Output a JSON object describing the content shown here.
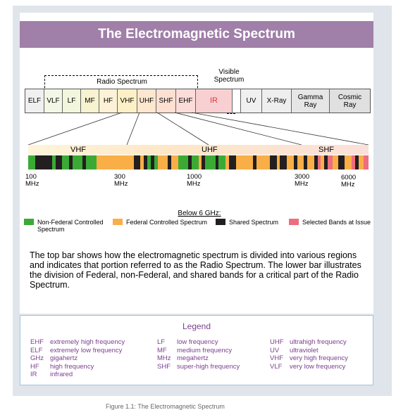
{
  "title": "The Electromagnetic Spectrum",
  "radio_spectrum_label": "Radio Spectrum",
  "visible_spectrum_label": "Visible\nSpectrum",
  "bands": [
    {
      "label": "ELF",
      "color": "#f0f0f0"
    },
    {
      "label": "VLF",
      "color": "#f3f7e5"
    },
    {
      "label": "LF",
      "color": "#f2f6dc"
    },
    {
      "label": "MF",
      "color": "#f7f2cf"
    },
    {
      "label": "HF",
      "color": "#fdf2d7"
    },
    {
      "label": "VHF",
      "color": "#fef0c6"
    },
    {
      "label": "UHF",
      "color": "#fde7cf"
    },
    {
      "label": "SHF",
      "color": "#fde0d2"
    },
    {
      "label": "EHF",
      "color": "#fbdcd8"
    },
    {
      "label": "IR",
      "color": "#f9d0d2",
      "text_color": "#e0353b"
    },
    {
      "label": "",
      "color": "#ffffff"
    },
    {
      "label": "UV",
      "color": "#f0f0f0"
    },
    {
      "label": "X-Ray",
      "color": "#eeeeee"
    },
    {
      "label": "Gamma\nRay",
      "color": "#e6e6e6"
    },
    {
      "label": "Cosmic\nRay",
      "color": "#e0e0e0"
    }
  ],
  "sub_bands": [
    "VHF",
    "UHF",
    "SHF"
  ],
  "ticks": [
    {
      "label": "100\nMHz"
    },
    {
      "label": "300\nMHz"
    },
    {
      "label": "1000\nMHz"
    },
    {
      "label": "3000\nMHz"
    },
    {
      "label": "6000\nMHz"
    }
  ],
  "below_label": "Below 6 GHz:",
  "allocation_legend": [
    {
      "label": "Non-Federal Controlled\nSpectrum",
      "color": "#3aaa35"
    },
    {
      "label": "Federal Controlled Spectrum",
      "color": "#f9ae48"
    },
    {
      "label": "Shared Spectrum",
      "color": "#231f20"
    },
    {
      "label": "Selected Bands at Issue",
      "color": "#ee6d7e"
    }
  ],
  "allocation_segments": [
    {
      "start": 0.0,
      "end": 0.02,
      "type": "green"
    },
    {
      "start": 0.02,
      "end": 0.07,
      "type": "black"
    },
    {
      "start": 0.07,
      "end": 0.08,
      "type": "green"
    },
    {
      "start": 0.08,
      "end": 0.1,
      "type": "black"
    },
    {
      "start": 0.12,
      "end": 0.13,
      "type": "black"
    },
    {
      "start": 0.13,
      "end": 0.16,
      "type": "green"
    },
    {
      "start": 0.16,
      "end": 0.17,
      "type": "black"
    },
    {
      "start": 0.17,
      "end": 0.2,
      "type": "green"
    },
    {
      "start": 0.2,
      "end": 0.31,
      "type": "orange"
    },
    {
      "start": 0.31,
      "end": 0.32,
      "type": "black"
    },
    {
      "start": 0.32,
      "end": 0.34,
      "type": "orange"
    },
    {
      "start": 0.315,
      "end": 0.33,
      "type": "black"
    },
    {
      "start": 0.34,
      "end": 0.35,
      "type": "black"
    },
    {
      "start": 0.36,
      "end": 0.37,
      "type": "black"
    },
    {
      "start": 0.38,
      "end": 0.41,
      "type": "orange"
    },
    {
      "start": 0.41,
      "end": 0.42,
      "type": "black"
    },
    {
      "start": 0.42,
      "end": 0.44,
      "type": "orange"
    },
    {
      "start": 0.44,
      "end": 0.45,
      "type": "green"
    },
    {
      "start": 0.47,
      "end": 0.48,
      "type": "black"
    },
    {
      "start": 0.5,
      "end": 0.51,
      "type": "orange"
    },
    {
      "start": 0.51,
      "end": 0.52,
      "type": "black"
    },
    {
      "start": 0.55,
      "end": 0.56,
      "type": "black"
    },
    {
      "start": 0.58,
      "end": 0.59,
      "type": "orange"
    },
    {
      "start": 0.59,
      "end": 0.61,
      "type": "black"
    },
    {
      "start": 0.61,
      "end": 0.66,
      "type": "orange"
    },
    {
      "start": 0.66,
      "end": 0.67,
      "type": "black"
    },
    {
      "start": 0.67,
      "end": 0.71,
      "type": "orange"
    },
    {
      "start": 0.71,
      "end": 0.73,
      "type": "black"
    },
    {
      "start": 0.73,
      "end": 0.74,
      "type": "orange"
    },
    {
      "start": 0.74,
      "end": 0.76,
      "type": "black"
    },
    {
      "start": 0.76,
      "end": 0.78,
      "type": "orange"
    },
    {
      "start": 0.78,
      "end": 0.79,
      "type": "black"
    },
    {
      "start": 0.79,
      "end": 0.81,
      "type": "orange"
    },
    {
      "start": 0.81,
      "end": 0.82,
      "type": "black"
    },
    {
      "start": 0.82,
      "end": 0.84,
      "type": "orange"
    },
    {
      "start": 0.84,
      "end": 0.85,
      "type": "black"
    },
    {
      "start": 0.85,
      "end": 0.86,
      "type": "pink"
    },
    {
      "start": 0.86,
      "end": 0.87,
      "type": "orange"
    },
    {
      "start": 0.87,
      "end": 0.88,
      "type": "black"
    },
    {
      "start": 0.88,
      "end": 0.895,
      "type": "pink"
    },
    {
      "start": 0.895,
      "end": 0.91,
      "type": "orange"
    },
    {
      "start": 0.91,
      "end": 0.93,
      "type": "black"
    },
    {
      "start": 0.93,
      "end": 0.95,
      "type": "orange"
    },
    {
      "start": 0.95,
      "end": 0.96,
      "type": "pink"
    },
    {
      "start": 0.96,
      "end": 0.97,
      "type": "black"
    },
    {
      "start": 0.97,
      "end": 0.985,
      "type": "orange"
    },
    {
      "start": 0.985,
      "end": 1.0,
      "type": "pink"
    }
  ],
  "description": "The top bar shows how the electromagnetic spectrum is divided into various regions and indicates that portion referred to as the Radio Spectrum.  The lower bar illustrates the division of Federal, non-Federal, and shared bands for a critical part of the Radio Spectrum.",
  "legend": {
    "title": "Legend",
    "columns": [
      [
        {
          "abbr": "EHF",
          "meaning": "extremely high frequency"
        },
        {
          "abbr": "ELF",
          "meaning": "extremely low frequency"
        },
        {
          "abbr": "GHz",
          "meaning": "gigahertz"
        },
        {
          "abbr": "HF",
          "meaning": "high frequency"
        },
        {
          "abbr": "IR",
          "meaning": "infrared"
        }
      ],
      [
        {
          "abbr": "LF",
          "meaning": "low frequency"
        },
        {
          "abbr": "MF",
          "meaning": "medium frequency"
        },
        {
          "abbr": "MHz",
          "meaning": "megahertz"
        },
        {
          "abbr": "SHF",
          "meaning": "super-high frequency"
        }
      ],
      [
        {
          "abbr": "UHF",
          "meaning": "ultrahigh frequency"
        },
        {
          "abbr": "UV",
          "meaning": "ultraviolet"
        },
        {
          "abbr": "VHF",
          "meaning": "very high frequency"
        },
        {
          "abbr": "VLF",
          "meaning": "very low frequency"
        }
      ]
    ]
  },
  "caption": "Figure 1.1: The Electromagnetic Spectrum"
}
